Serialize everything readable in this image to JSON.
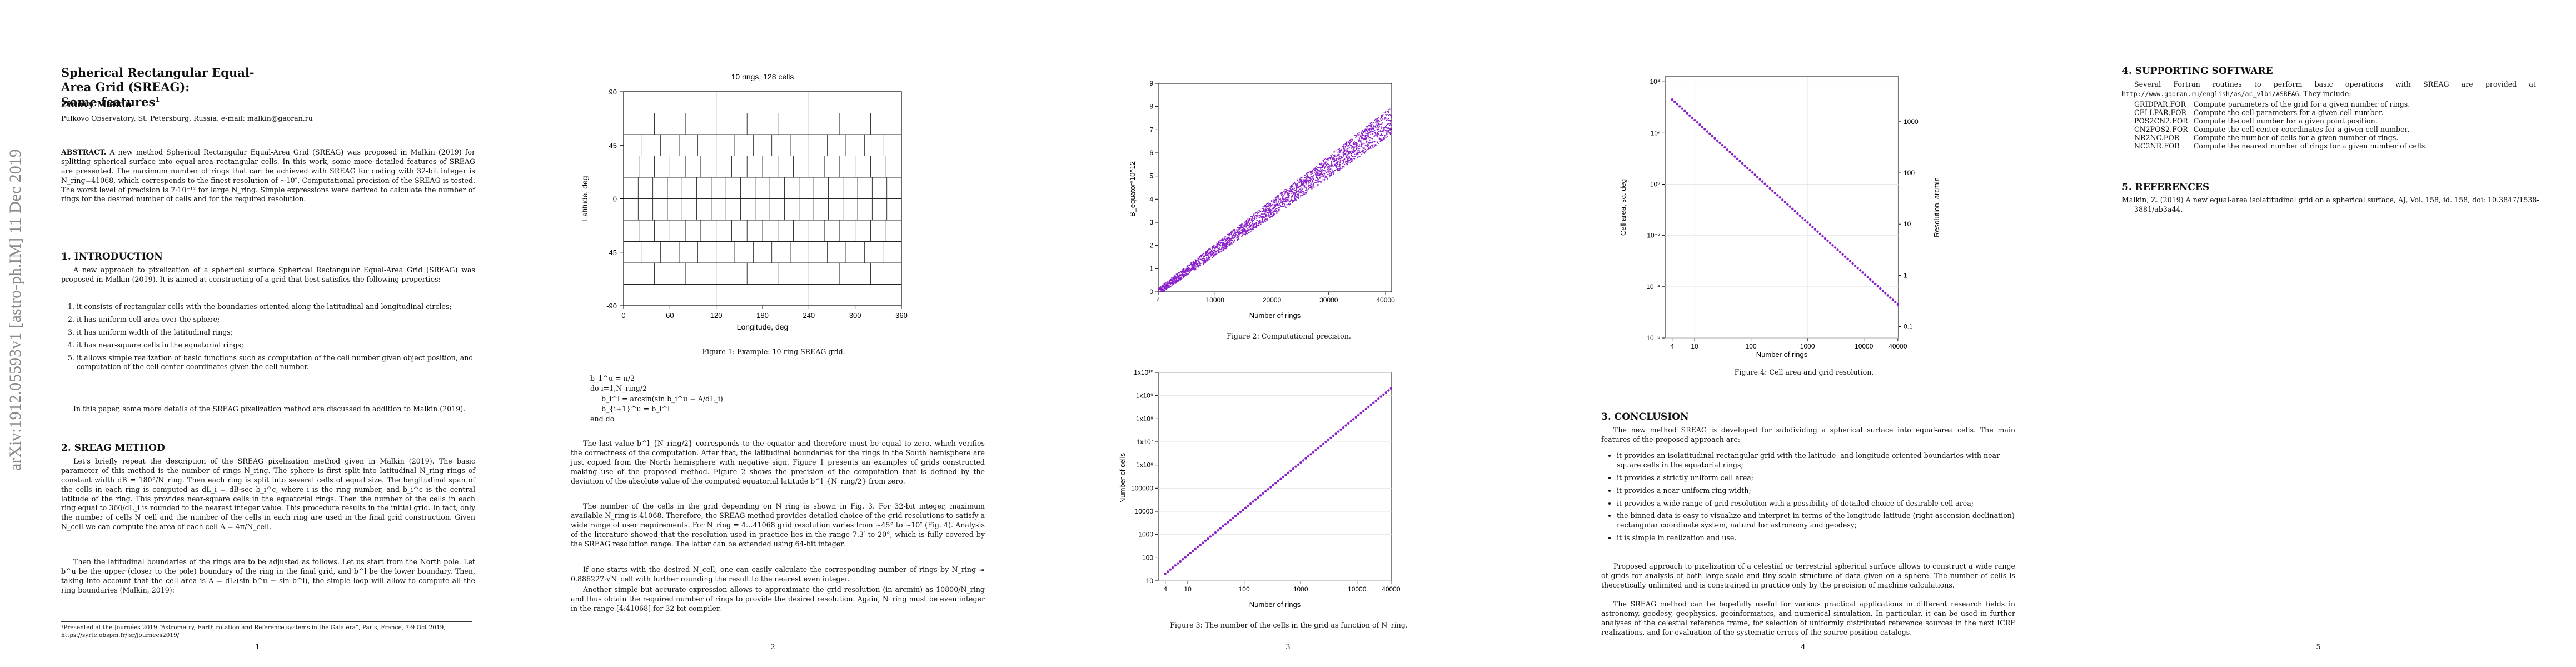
{
  "arxiv_stamp": "arXiv:1912.05593v1  [astro-ph.IM]  11 Dec 2019",
  "page_numbers": [
    "1",
    "2",
    "3",
    "4",
    "5"
  ],
  "p1": {
    "title": "Spherical Rectangular Equal-Area Grid (SREAG):\nSome features",
    "title_mark": "1",
    "author": "Zinovy Malkin",
    "affiliation": "Pulkovo Observatory, St. Petersburg, Russia, e-mail: malkin@gaoran.ru",
    "abstract_label": "ABSTRACT.",
    "abstract": " A new method Spherical Rectangular Equal-Area Grid (SREAG) was proposed in Malkin (2019) for splitting spherical surface into equal-area rectangular cells. In this work, some more detailed features of SREAG are presented. The maximum number of rings that can be achieved with SREAG for coding with 32-bit integer is N_ring=41068, which corresponds to the finest resolution of ∼10″. Computational precision of the SREAG is tested. The worst level of precision is 7·10⁻¹² for large N_ring. Simple expressions were derived to calculate the number of rings for the desired number of cells and for the required resolution.",
    "sec1_title": "1. INTRODUCTION",
    "sec1_text": "A new approach to pixelization of a spherical surface Spherical Rectangular Equal-Area Grid (SREAG) was proposed in Malkin (2019). It is aimed at constructing of a grid that best satisfies the following properties:",
    "props": [
      "it consists of rectangular cells with the boundaries oriented along the latitudinal and longitudinal circles;",
      "it has uniform cell area over the sphere;",
      "it has uniform width of the latitudinal rings;",
      "it has near-square cells in the equatorial rings;",
      "it allows simple realization of basic functions such as computation of the cell number given object position, and computation of the cell center coordinates given the cell number."
    ],
    "sec1_after": "In this paper, some more details of the SREAG pixelization method are discussed in addition to Malkin (2019).",
    "sec2_title": "2. SREAG METHOD",
    "sec2_text1": "Let's briefly repeat the description of the SREAG pixelization method given in Malkin (2019). The basic parameter of this method is the number of rings N_ring. The sphere is first split into latitudinal N_ring rings of constant width dB = 180°/N_ring. Then each ring is split into several cells of equal size. The longitudinal span of the cells in each ring is computed as dL_i = dB·sec b_i^c, where i is the ring number, and b_i^c is the central latitude of the ring. This provides near-square cells in the equatorial rings. Then the number of the cells in each ring equal to 360/dL_i is rounded to the nearest integer value. This procedure results in the initial grid. In fact, only the number of cells N_cell and the number of the cells in each ring are used in the final grid construction. Given N_cell we can compute the area of each cell A = 4π/N_cell.",
    "sec2_text2": "Then the latitudinal boundaries of the rings are to be adjusted as follows. Let us start from the North pole. Let b^u be the upper (closer to the pole) boundary of the ring in the final grid, and b^l be the lower boundary. Then, taking into account that the cell area is A = dL·(sin b^u − sin b^l), the simple loop will allow to compute all the ring boundaries (Malkin, 2019):",
    "footnote": "¹Presented at the Journées 2019 “Astrometry, Earth rotation and Reference systems in the Gaia era”, Paris, France, 7-9 Oct 2019, https://syrte.obspm.fr/jsr/journees2019/"
  },
  "p2": {
    "fig1": {
      "title": "10 rings, 128 cells",
      "xlabel": "Longitude, deg",
      "ylabel": "Latitude, deg",
      "xticks": [
        "0",
        "60",
        "120",
        "180",
        "240",
        "300",
        "360"
      ],
      "yticks": [
        "90",
        "45",
        "0",
        "-45",
        "-90"
      ],
      "caption": "Figure 1: Example: 10-ring SREAG grid."
    },
    "algo": [
      "b_1^u = π/2",
      "do i=1,N_ring/2",
      "b_i^l = arcsin(sin b_i^u − A/dL_i)",
      "b_{i+1}^u = b_i^l",
      "end do"
    ],
    "text1": "The last value b^l_{N_ring/2} corresponds to the equator and therefore must be equal to zero, which verifies the correctness of the computation. After that, the latitudinal boundaries for the rings in the South hemisphere are just copied from the North hemisphere with negative sign. Figure 1 presents an examples of grids constructed making use of the proposed method. Figure 2 shows the precision of the computation that is defined by the deviation of the absolute value of the computed equatorial latitude b^l_{N_ring/2} from zero.",
    "text2": "The number of the cells in the grid depending on N_ring is shown in Fig. 3. For 32-bit integer, maximum available N_ring is 41068. Therefore, the SREAG method provides detailed choice of the grid resolutions to satisfy a wide range of user requirements. For N_ring = 4…41068 grid resolution varies from ∼45° to ∼10″ (Fig. 4). Analysis of the literature showed that the resolution used in practice lies in the range 7.3′ to 20°, which is fully covered by the SREAG resolution range. The latter can be extended using 64-bit integer.",
    "text3": "If one starts with the desired N_cell, one can easily calculate the corresponding number of rings by N_ring ≈ 0.886227·√N_cell with further rounding the result to the nearest even integer.",
    "text4": "Another simple but accurate expression allows to approximate the grid resolution (in arcmin) as 10800/N_ring and thus obtain the required number of rings to provide the desired resolution. Again, N_ring must be even integer in the range [4:41068] for 32-bit compiler."
  },
  "p3": {
    "fig2": {
      "xlabel": "Number of rings",
      "ylabel": "B_equator*10^12",
      "xticks": [
        "4",
        "10000",
        "20000",
        "30000",
        "40000"
      ],
      "yticks": [
        "0",
        "1",
        "2",
        "3",
        "4",
        "5",
        "6",
        "7",
        "8",
        "9"
      ],
      "caption": "Figure 2: Computational precision."
    },
    "fig3": {
      "xlabel": "Number of rings",
      "ylabel": "Number of cells",
      "xticks": [
        "4",
        "10",
        "100",
        "1000",
        "10000",
        "40000"
      ],
      "yticks": [
        "10",
        "100",
        "1000",
        "10000",
        "100000",
        "1x10⁶",
        "1x10⁷",
        "1x10⁸",
        "1x10⁹",
        "1x10¹⁰"
      ],
      "caption": "Figure 3: The number of the cells in the grid as function of N_ring."
    }
  },
  "p4": {
    "fig4": {
      "xlabel": "Number of rings",
      "ylabel_left": "Cell area, sq. deg",
      "ylabel_right": "Resolution, arcmin",
      "xticks": [
        "4",
        "10",
        "100",
        "1000",
        "10000",
        "40000"
      ],
      "yticks_left": [
        "10⁴",
        "10²",
        "10⁰",
        "10⁻²",
        "10⁻⁴",
        "10⁻⁶"
      ],
      "yticks_right": [
        "1000",
        "100",
        "10",
        "1",
        "0.1"
      ],
      "caption": "Figure 4: Cell area and grid resolution."
    },
    "sec3_title": "3. CONCLUSION",
    "sec3_text": "The new method SREAG is developed for subdividing a spherical surface into equal-area cells. The main features of the proposed approach are:",
    "items": [
      "it provides an isolatitudinal rectangular grid with the latitude- and longitude-oriented boundaries with near-square cells in the equatorial rings;",
      "it provides a strictly uniform cell area;",
      "it provides a near-uniform ring width;",
      "it provides a wide range of grid resolution with a possibility of detailed choice of desirable cell area;",
      "the binned data is easy to visualize and interpret in terms of the longitude-latitude (right ascension-declination) rectangular coordinate system, natural for astronomy and geodesy;",
      "it is simple in realization and use."
    ],
    "para1": "Proposed approach to pixelization of a celestial or terrestrial spherical surface allows to construct a wide range of grids for analysis of both large-scale and tiny-scale structure of data given on a sphere. The number of cells is theoretically unlimited and is constrained in practice only by the precision of machine calculations.",
    "para2": "The SREAG method can be hopefully useful for various practical applications in different research fields in astronomy, geodesy, geophysics, geoinformatics, and numerical simulation. In particular, it can be used in further analyses of the celestial reference frame, for selection of uniformly distributed reference sources in the next ICRF realizations, and for evaluation of the systematic errors of the source position catalogs."
  },
  "p5": {
    "sec4_title": "4. SUPPORTING SOFTWARE",
    "sec4_text": "Several Fortran routines to perform basic operations with SREAG are provided at",
    "url": "http://www.gaoran.ru/english/as/ac_vlbi/#SREAG",
    "url_after": ". They include:",
    "routines": [
      [
        "GRIDPAR.FOR",
        "Compute parameters of the grid for a given number of rings."
      ],
      [
        "CELLPAR.FOR",
        "Compute the cell parameters for a given cell number."
      ],
      [
        "POS2CN2.FOR",
        "Compute the cell number for a given point position."
      ],
      [
        "CN2POS2.FOR",
        "Compute the cell center coordinates for a given cell number."
      ],
      [
        "NR2NC.FOR",
        "Compute the number of cells for a given number of rings."
      ],
      [
        "NC2NR.FOR",
        "Compute the nearest number of rings for a given number of cells."
      ]
    ],
    "sec5_title": "5. REFERENCES",
    "reference": "Malkin, Z. (2019) A new equal-area isolatitudinal grid on a spherical surface, AJ, Vol. 158, id. 158, doi: 10.3847/1538-3881/ab3a44."
  }
}
